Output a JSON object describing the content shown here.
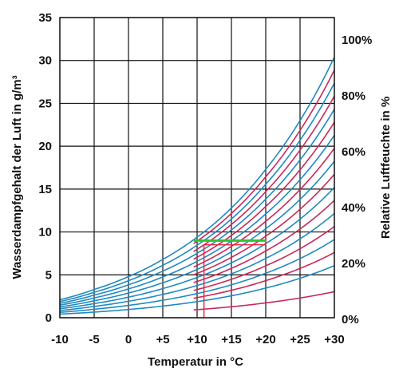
{
  "chart_data": {
    "type": "line",
    "xlabel": "Temperatur in °C",
    "ylabel": "Wasserdampfgehalt der Luft in g/m³",
    "y2label": "Relative Luftfeuchte in %",
    "xlim": [
      -10,
      30
    ],
    "ylim": [
      0,
      35
    ],
    "x_ticks": [
      -10,
      -5,
      0,
      5,
      10,
      15,
      20,
      25,
      30
    ],
    "x_tick_labels": [
      "-10",
      "-5",
      "0",
      "+5",
      "+10",
      "+15",
      "+20",
      "+25",
      "+30"
    ],
    "y_ticks": [
      0,
      5,
      10,
      15,
      20,
      25,
      30,
      35
    ],
    "y_tick_labels": [
      "0",
      "5",
      "10",
      "15",
      "20",
      "25",
      "30",
      "35"
    ],
    "y2_ticks": [
      0,
      20,
      40,
      60,
      80,
      100
    ],
    "y2_tick_labels": [
      "0%",
      "20%",
      "40%",
      "60%",
      "80%",
      "100%"
    ],
    "grid": true,
    "saturation_curve": {
      "x": [
        -10,
        -5,
        0,
        5,
        10,
        15,
        20,
        25,
        30
      ],
      "values": [
        2.1,
        3.3,
        4.8,
        6.8,
        9.4,
        12.8,
        17.3,
        23.0,
        30.4
      ]
    },
    "series": [
      {
        "color": "#1f8ac0",
        "fraction": 1.0,
        "x_start": -10
      },
      {
        "color": "#1f8ac0",
        "fraction": 0.9,
        "x_start": -10
      },
      {
        "color": "#1f8ac0",
        "fraction": 0.8,
        "x_start": -10
      },
      {
        "color": "#1f8ac0",
        "fraction": 0.7,
        "x_start": -10
      },
      {
        "color": "#1f8ac0",
        "fraction": 0.6,
        "x_start": -10
      },
      {
        "color": "#1f8ac0",
        "fraction": 0.5,
        "x_start": -10
      },
      {
        "color": "#1f8ac0",
        "fraction": 0.4,
        "x_start": -10
      },
      {
        "color": "#1f8ac0",
        "fraction": 0.3,
        "x_start": -10
      },
      {
        "color": "#1f8ac0",
        "fraction": 0.2,
        "x_start": -10
      },
      {
        "color": "#c8285a",
        "fraction": 0.95,
        "x_start": 9.5
      },
      {
        "color": "#c8285a",
        "fraction": 0.85,
        "x_start": 9.5
      },
      {
        "color": "#c8285a",
        "fraction": 0.75,
        "x_start": 9.5
      },
      {
        "color": "#c8285a",
        "fraction": 0.65,
        "x_start": 9.5
      },
      {
        "color": "#c8285a",
        "fraction": 0.55,
        "x_start": 9.5
      },
      {
        "color": "#c8285a",
        "fraction": 0.45,
        "x_start": 9.5
      },
      {
        "color": "#c8285a",
        "fraction": 0.35,
        "x_start": 9.5
      },
      {
        "color": "#c8285a",
        "fraction": 0.25,
        "x_start": 9.5
      },
      {
        "color": "#c8285a",
        "fraction": 0.1,
        "x_start": 9.5
      }
    ],
    "annotations": {
      "green_line": {
        "color": "#33c233",
        "x": [
          9.5,
          20
        ],
        "y": 9.0
      },
      "red_guide": {
        "color": "#e8283c",
        "points": [
          [
            11,
            0
          ],
          [
            11,
            8.5
          ],
          [
            20,
            8.5
          ],
          [
            20,
            9.0
          ]
        ]
      }
    },
    "colors": {
      "blue": "#1f8ac0",
      "red": "#c8285a",
      "green": "#33c233",
      "grid": "#111111"
    }
  }
}
